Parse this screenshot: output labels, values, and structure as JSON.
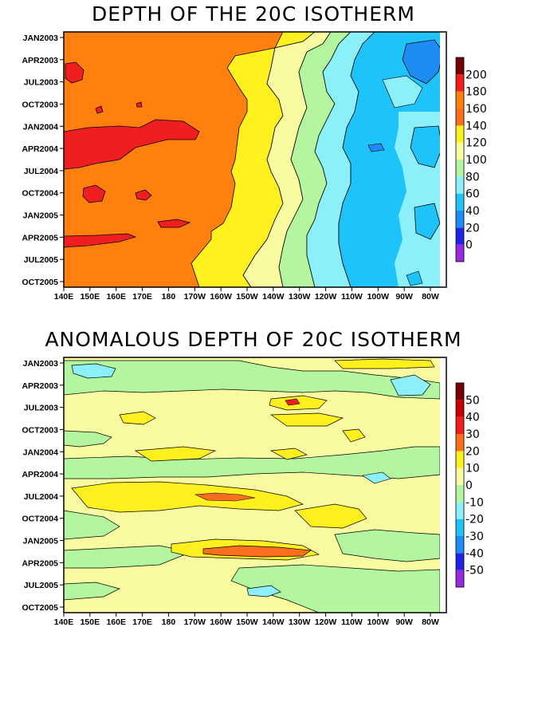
{
  "chart_data": [
    {
      "type": "heatmap",
      "title": "DEPTH OF THE 20C ISOTHERM",
      "x_ticks": [
        "140E",
        "150E",
        "160E",
        "170E",
        "180",
        "170W",
        "160W",
        "150W",
        "140W",
        "130W",
        "120W",
        "110W",
        "100W",
        "90W",
        "80W"
      ],
      "y_ticks": [
        "JAN2003",
        "APR2003",
        "JUL2003",
        "OCT2003",
        "JAN2004",
        "APR2004",
        "JUL2004",
        "OCT2004",
        "JAN2005",
        "APR2005",
        "JUL2005",
        "OCT2005"
      ],
      "colorbar_levels": [
        "0",
        "20",
        "40",
        "60",
        "80",
        "100",
        "120",
        "140",
        "160",
        "180",
        "200"
      ],
      "colorbar_colors": [
        "#9a2ae0",
        "#2323e6",
        "#1e8cf5",
        "#1ec3fa",
        "#8cf0fa",
        "#b4f5a0",
        "#fafaa0",
        "#fff01e",
        "#fa6e1e",
        "#ff7f0f",
        "#f01e1e",
        "#780000"
      ],
      "value_range": [
        0,
        200
      ],
      "description": "depth decreases from west (~160-180 m) to east (~40-60 m)"
    },
    {
      "type": "heatmap",
      "title": "ANOMALOUS DEPTH OF 20C ISOTHERM",
      "x_ticks": [
        "140E",
        "150E",
        "160E",
        "170E",
        "180",
        "170W",
        "160W",
        "150W",
        "140W",
        "130W",
        "120W",
        "110W",
        "100W",
        "90W",
        "80W"
      ],
      "y_ticks": [
        "JAN2003",
        "APR2003",
        "JUL2003",
        "OCT2003",
        "JAN2004",
        "APR2004",
        "JUL2004",
        "OCT2004",
        "JAN2005",
        "APR2005",
        "JUL2005",
        "OCT2005"
      ],
      "colorbar_levels": [
        "-50",
        "-40",
        "-30",
        "-20",
        "-10",
        "0",
        "10",
        "20",
        "30",
        "40",
        "50"
      ],
      "colorbar_colors": [
        "#9a2ae0",
        "#2323e6",
        "#1e8cf5",
        "#1ec3fa",
        "#8cf0fa",
        "#b4f5a0",
        "#fafaa0",
        "#fff01e",
        "#fa6e1e",
        "#f01e1e",
        "#c80000",
        "#780000"
      ],
      "value_range": [
        -50,
        50
      ]
    }
  ]
}
